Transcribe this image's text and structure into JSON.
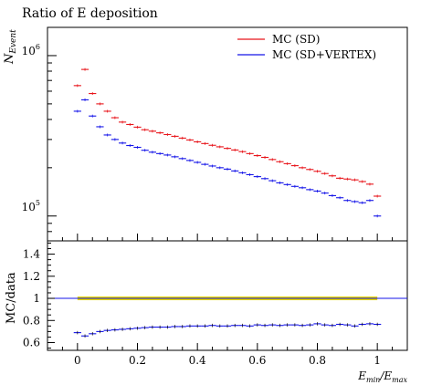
{
  "chart_data": [
    {
      "type": "scatter",
      "title": "Ratio of E deposition",
      "xlabel": "",
      "ylabel": "N_Event",
      "ylabel_main": "N",
      "ylabel_sub": "Event",
      "yscale": "log",
      "xlim": [
        -0.1,
        1.1
      ],
      "ylim": [
        70000,
        1500000
      ],
      "legend_position": "top-right",
      "y_tick_labels": [
        {
          "value": 100000,
          "base": "10",
          "exp": "5"
        },
        {
          "value": 1000000,
          "base": "10",
          "exp": "6"
        }
      ],
      "x": [
        0.0,
        0.025,
        0.05,
        0.075,
        0.1,
        0.125,
        0.15,
        0.175,
        0.2,
        0.225,
        0.25,
        0.275,
        0.3,
        0.325,
        0.35,
        0.375,
        0.4,
        0.425,
        0.45,
        0.475,
        0.5,
        0.525,
        0.55,
        0.575,
        0.6,
        0.625,
        0.65,
        0.675,
        0.7,
        0.725,
        0.75,
        0.775,
        0.8,
        0.825,
        0.85,
        0.875,
        0.9,
        0.925,
        0.95,
        0.975,
        1.0
      ],
      "series": [
        {
          "name": "MC (SD)",
          "color": "#e8141a",
          "values": [
            650000,
            820000,
            580000,
            500000,
            450000,
            410000,
            385000,
            372000,
            358000,
            345000,
            338000,
            330000,
            322000,
            314000,
            306000,
            298000,
            290000,
            283000,
            276000,
            270000,
            264000,
            258000,
            252000,
            245000,
            238000,
            232000,
            225000,
            218000,
            212000,
            206000,
            200000,
            195000,
            190000,
            184000,
            178000,
            172000,
            170000,
            168000,
            164000,
            158000,
            133000
          ]
        },
        {
          "name": "MC (SD+VERTEX)",
          "color": "#1414e8",
          "values": [
            450000,
            530000,
            420000,
            360000,
            320000,
            300000,
            285000,
            275000,
            268000,
            257000,
            250000,
            245000,
            240000,
            234000,
            228000,
            222000,
            216000,
            210000,
            205000,
            200000,
            196000,
            191000,
            186000,
            181000,
            176000,
            171000,
            166000,
            161000,
            157000,
            153000,
            150000,
            146000,
            143000,
            139000,
            134000,
            130000,
            125000,
            123000,
            121000,
            125000,
            100000
          ]
        }
      ]
    },
    {
      "type": "scatter",
      "title": "",
      "xlabel": "E_min/E_max",
      "xlabel_parts": {
        "a": "E",
        "a_sub": "min",
        "sep": "/",
        "b": "E",
        "b_sub": "max"
      },
      "ylabel": "MC/data",
      "xlim": [
        -0.1,
        1.1
      ],
      "ylim": [
        0.53,
        1.52
      ],
      "x_tick_labels": [
        "0",
        "0.2",
        "0.4",
        "0.6",
        "0.8",
        "1"
      ],
      "y_tick_labels": [
        "0.6",
        "0.8",
        "1",
        "1.2",
        "1.4"
      ],
      "reference_line": {
        "value": 1,
        "color": "#000000"
      },
      "uncertainty_band": {
        "x_range": [
          0.0,
          1.0
        ],
        "color": "#e8d800"
      },
      "x": [
        0.0,
        0.025,
        0.05,
        0.075,
        0.1,
        0.125,
        0.15,
        0.175,
        0.2,
        0.225,
        0.25,
        0.275,
        0.3,
        0.325,
        0.35,
        0.375,
        0.4,
        0.425,
        0.45,
        0.475,
        0.5,
        0.525,
        0.55,
        0.575,
        0.6,
        0.625,
        0.65,
        0.675,
        0.7,
        0.725,
        0.75,
        0.775,
        0.8,
        0.825,
        0.85,
        0.875,
        0.9,
        0.925,
        0.95,
        0.975,
        1.0
      ],
      "series": [
        {
          "name": "",
          "color": "#1414e8",
          "values": [
            0.69,
            0.66,
            0.68,
            0.7,
            0.71,
            0.715,
            0.72,
            0.725,
            0.73,
            0.735,
            0.74,
            0.74,
            0.74,
            0.745,
            0.745,
            0.75,
            0.75,
            0.75,
            0.755,
            0.75,
            0.75,
            0.755,
            0.755,
            0.75,
            0.76,
            0.755,
            0.76,
            0.755,
            0.76,
            0.76,
            0.755,
            0.76,
            0.77,
            0.76,
            0.755,
            0.765,
            0.76,
            0.75,
            0.765,
            0.77,
            0.765
          ]
        }
      ]
    }
  ]
}
